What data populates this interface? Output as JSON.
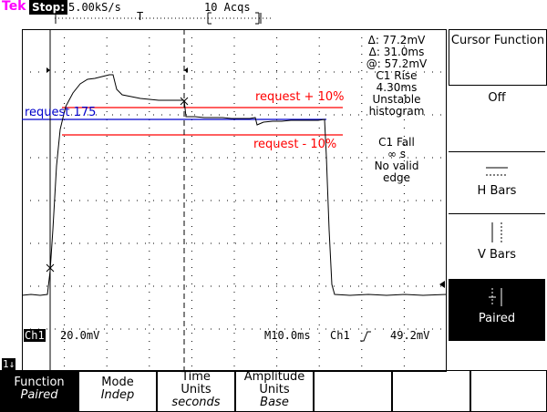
{
  "status_bar": {
    "brand": "Tek",
    "state": "Stop:",
    "sample_rate": "5.00kS/s",
    "acquisitions": "10 Acqs",
    "trigger_marker": "T"
  },
  "cursor_readout": {
    "delta_v": "Δ: 77.2mV",
    "delta_t": "Δ: 31.0ms",
    "at_v": "@: 57.2mV",
    "rise_title": "C1 Rise",
    "rise_value": "4.30ms",
    "rise_note1": "Unstable",
    "rise_note2": "histogram",
    "fall_title": "C1 Fall",
    "fall_value": "∞ s",
    "fall_note1": "No valid",
    "fall_note2": "edge"
  },
  "annotations": {
    "upper_limit": "request + 10%",
    "lower_limit": "request - 10%",
    "request": "request 175"
  },
  "bottom_info": {
    "channel": "Ch1",
    "volts_div": "20.0mV",
    "time_div": "M10.0ms",
    "trig_source": "Ch1",
    "trig_level": "49.2mV",
    "ground_marker": "1↓"
  },
  "side_menu": {
    "title": "Cursor Function",
    "items": [
      "Off",
      "H Bars",
      "V Bars",
      "Paired"
    ],
    "selected_index": 3
  },
  "softkeys": [
    {
      "label": "Function",
      "value": "Paired"
    },
    {
      "label": "Mode",
      "value": "Indep"
    },
    {
      "label": "Time Units",
      "value": "seconds"
    },
    {
      "label": "Amplitude Units",
      "value": "Base"
    },
    {
      "label": "",
      "value": ""
    },
    {
      "label": "",
      "value": ""
    },
    {
      "label": "",
      "value": ""
    }
  ],
  "colors": {
    "limit_lines": "#ff0000",
    "request_line": "#0000cc",
    "trace": "#000000",
    "highlight": "#ff00ff"
  }
}
